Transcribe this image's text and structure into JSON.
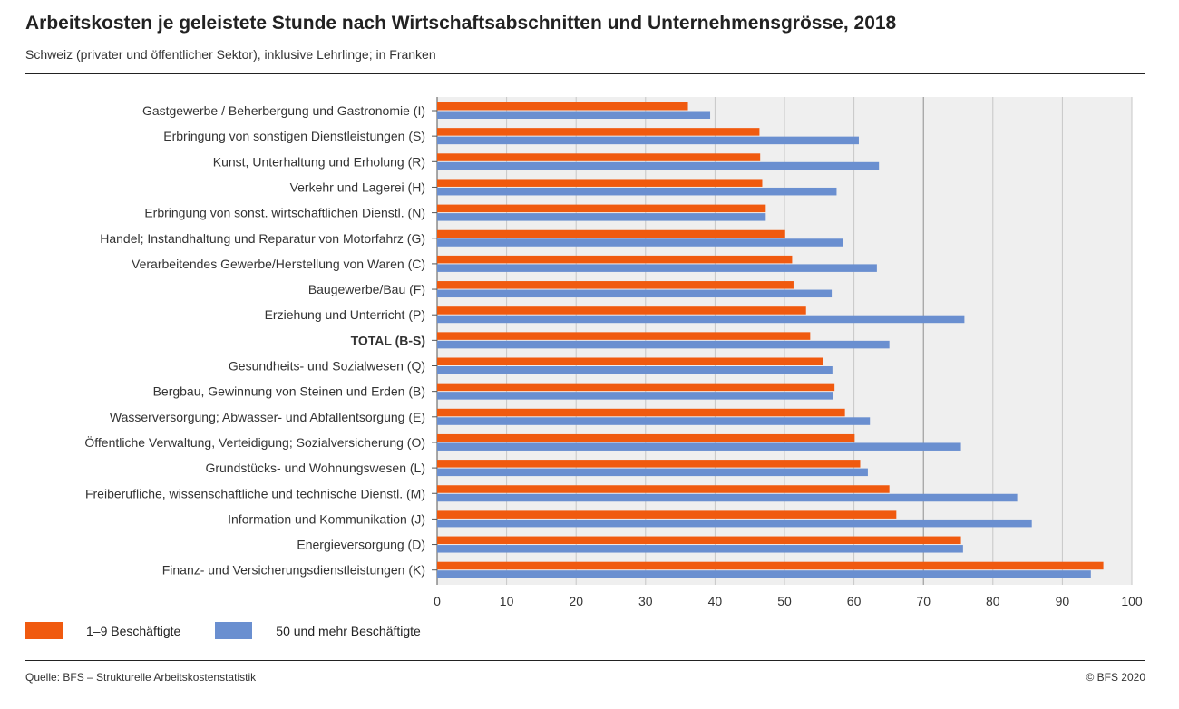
{
  "title": "Arbeitskosten je geleistete Stunde nach Wirtschaftsabschnitten und Unternehmensgrösse, 2018",
  "subtitle": "Schweiz (privater und öffentlicher Sektor), inklusive Lehrlinge; in Franken",
  "source": "Quelle: BFS – Strukturelle Arbeitskostenstatistik",
  "copyright": "© BFS 2020",
  "colors": {
    "small": "#f05a0f",
    "large": "#6a8fd0",
    "plot_bg": "#efefef",
    "grid": "#c7c7c7",
    "grid_dark": "#8c8c8c"
  },
  "chart_data": {
    "type": "bar",
    "orientation": "horizontal",
    "categories": [
      "Gastgewerbe / Beherbergung und Gastronomie (I)",
      "Erbringung von sonstigen Dienstleistungen (S)",
      "Kunst, Unterhaltung und Erholung (R)",
      "Verkehr und Lagerei (H)",
      "Erbringung von sonst. wirtschaftlichen Dienstl. (N)",
      "Handel; Instandhaltung und Reparatur von Motorfahrz (G)",
      "Verarbeitendes Gewerbe/Herstellung von Waren (C)",
      "Baugewerbe/Bau (F)",
      "Erziehung und Unterricht (P)",
      "TOTAL (B-S)",
      "Gesundheits- und Sozialwesen (Q)",
      "Bergbau, Gewinnung von Steinen und Erden (B)",
      "Wasserversorgung; Abwasser- und Abfallentsorgung (E)",
      "Öffentliche Verwaltung, Verteidigung; Sozialversicherung (O)",
      "Grundstücks- und Wohnungswesen (L)",
      "Freiberufliche, wissenschaftliche und technische Dienstl. (M)",
      "Information und Kommunikation (J)",
      "Energieversorgung (D)",
      "Finanz- und Versicherungsdienstleistungen (K)"
    ],
    "bold_categories": [
      "TOTAL (B-S)"
    ],
    "series": [
      {
        "name": "1–9 Beschäftigte",
        "color": "#f05a0f",
        "values": [
          36.1,
          46.4,
          46.5,
          46.8,
          47.3,
          50.1,
          51.1,
          51.3,
          53.1,
          53.7,
          55.6,
          57.2,
          58.7,
          60.1,
          60.9,
          65.1,
          66.1,
          75.4,
          95.9
        ]
      },
      {
        "name": "50 und mehr Beschäftigte",
        "color": "#6a8fd0",
        "values": [
          39.3,
          60.7,
          63.6,
          57.5,
          47.3,
          58.4,
          63.3,
          56.8,
          75.9,
          65.1,
          56.9,
          57.0,
          62.3,
          75.4,
          62.0,
          83.5,
          85.6,
          75.7,
          94.1
        ]
      }
    ],
    "x_ticks": [
      "0",
      "10",
      "20",
      "30",
      "40",
      "50",
      "60",
      "70",
      "80",
      "90",
      "100"
    ],
    "xlim": [
      0,
      100
    ],
    "grid": true,
    "highlight_gridline": 70,
    "legend_position": "bottom-left"
  }
}
